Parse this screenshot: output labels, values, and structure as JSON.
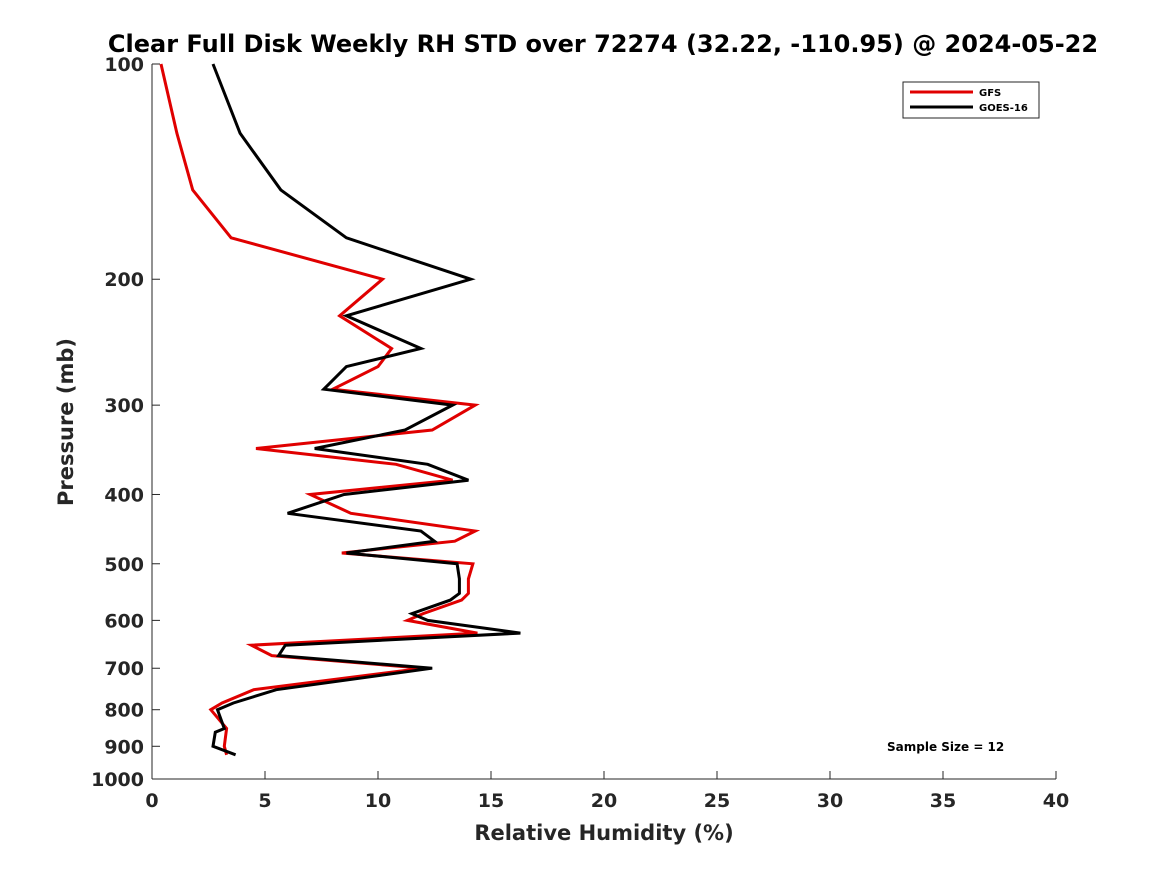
{
  "chart_data": {
    "type": "line",
    "title": "Clear Full Disk Weekly RH STD over 72274 (32.22, -110.95) @ 2024-05-22",
    "xlabel": "Relative Humidity (%)",
    "ylabel": "Pressure (mb)",
    "xlim": [
      0,
      40
    ],
    "ylim": [
      100,
      1000
    ],
    "y_scale": "log",
    "y_reversed": true,
    "x_ticks": [
      0,
      5,
      10,
      15,
      20,
      25,
      30,
      35,
      40
    ],
    "y_ticks": [
      100,
      200,
      300,
      400,
      500,
      600,
      700,
      800,
      900,
      1000
    ],
    "grid": false,
    "legend_position": "top-right",
    "annotation": "Sample Size = 12",
    "series": [
      {
        "name": "GFS",
        "color": "#e00000",
        "points": [
          {
            "x": 0.4,
            "y": 100
          },
          {
            "x": 1.1,
            "y": 125
          },
          {
            "x": 1.8,
            "y": 150
          },
          {
            "x": 3.5,
            "y": 175
          },
          {
            "x": 10.2,
            "y": 200
          },
          {
            "x": 8.3,
            "y": 225
          },
          {
            "x": 10.6,
            "y": 250
          },
          {
            "x": 10.0,
            "y": 265
          },
          {
            "x": 8.0,
            "y": 285
          },
          {
            "x": 14.3,
            "y": 300
          },
          {
            "x": 12.4,
            "y": 325
          },
          {
            "x": 4.6,
            "y": 345
          },
          {
            "x": 10.8,
            "y": 363
          },
          {
            "x": 13.3,
            "y": 382
          },
          {
            "x": 7.0,
            "y": 400
          },
          {
            "x": 8.8,
            "y": 425
          },
          {
            "x": 14.3,
            "y": 450
          },
          {
            "x": 13.4,
            "y": 465
          },
          {
            "x": 8.4,
            "y": 483
          },
          {
            "x": 14.2,
            "y": 500
          },
          {
            "x": 14.0,
            "y": 525
          },
          {
            "x": 14.0,
            "y": 550
          },
          {
            "x": 13.7,
            "y": 562
          },
          {
            "x": 12.0,
            "y": 587
          },
          {
            "x": 11.3,
            "y": 600
          },
          {
            "x": 14.4,
            "y": 625
          },
          {
            "x": 4.4,
            "y": 650
          },
          {
            "x": 5.3,
            "y": 672
          },
          {
            "x": 12.0,
            "y": 700
          },
          {
            "x": 4.5,
            "y": 750
          },
          {
            "x": 3.1,
            "y": 783
          },
          {
            "x": 2.6,
            "y": 800
          },
          {
            "x": 3.3,
            "y": 850
          },
          {
            "x": 3.2,
            "y": 900
          },
          {
            "x": 3.3,
            "y": 925
          }
        ]
      },
      {
        "name": "GOES-16",
        "color": "#000000",
        "points": [
          {
            "x": 2.7,
            "y": 100
          },
          {
            "x": 3.9,
            "y": 125
          },
          {
            "x": 5.7,
            "y": 150
          },
          {
            "x": 8.6,
            "y": 175
          },
          {
            "x": 14.1,
            "y": 200
          },
          {
            "x": 8.6,
            "y": 225
          },
          {
            "x": 11.9,
            "y": 250
          },
          {
            "x": 8.6,
            "y": 265
          },
          {
            "x": 7.6,
            "y": 285
          },
          {
            "x": 13.3,
            "y": 300
          },
          {
            "x": 11.2,
            "y": 325
          },
          {
            "x": 7.2,
            "y": 345
          },
          {
            "x": 12.2,
            "y": 363
          },
          {
            "x": 14.0,
            "y": 382
          },
          {
            "x": 8.5,
            "y": 400
          },
          {
            "x": 6.0,
            "y": 425
          },
          {
            "x": 11.9,
            "y": 450
          },
          {
            "x": 12.5,
            "y": 465
          },
          {
            "x": 8.6,
            "y": 483
          },
          {
            "x": 13.5,
            "y": 500
          },
          {
            "x": 13.6,
            "y": 525
          },
          {
            "x": 13.6,
            "y": 550
          },
          {
            "x": 13.2,
            "y": 562
          },
          {
            "x": 11.5,
            "y": 587
          },
          {
            "x": 12.2,
            "y": 600
          },
          {
            "x": 16.3,
            "y": 625
          },
          {
            "x": 5.9,
            "y": 650
          },
          {
            "x": 5.6,
            "y": 672
          },
          {
            "x": 12.4,
            "y": 700
          },
          {
            "x": 5.5,
            "y": 750
          },
          {
            "x": 3.6,
            "y": 783
          },
          {
            "x": 2.9,
            "y": 800
          },
          {
            "x": 3.2,
            "y": 850
          },
          {
            "x": 2.8,
            "y": 860
          },
          {
            "x": 2.7,
            "y": 900
          },
          {
            "x": 3.7,
            "y": 925
          }
        ]
      }
    ]
  }
}
